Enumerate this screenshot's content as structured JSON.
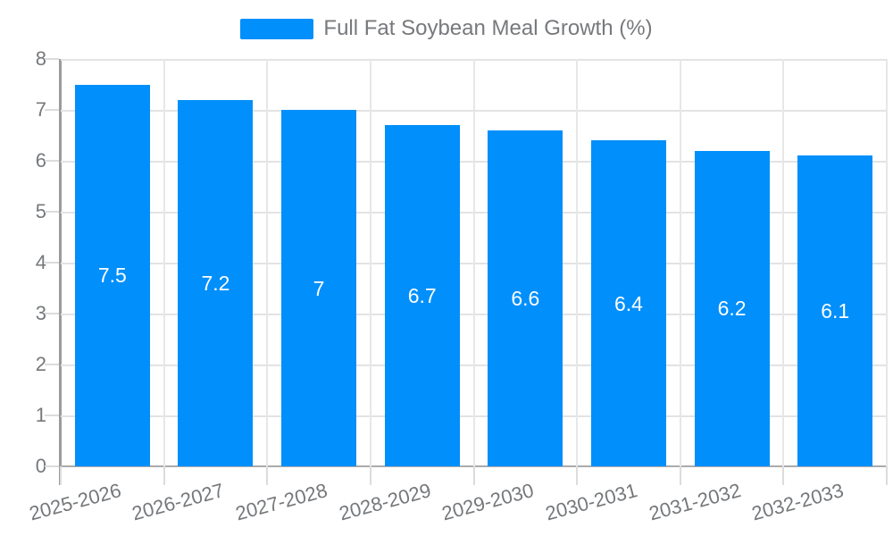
{
  "chart_data": {
    "type": "bar",
    "title": "",
    "xlabel": "",
    "ylabel": "",
    "legend": {
      "label": "Full Fat Soybean Meal Growth (%)",
      "position": "top"
    },
    "categories": [
      "2025-2026",
      "2026-2027",
      "2027-2028",
      "2028-2029",
      "2029-2030",
      "2030-2031",
      "2031-2032",
      "2032-2033"
    ],
    "values": [
      7.5,
      7.2,
      7,
      6.7,
      6.6,
      6.4,
      6.2,
      6.1
    ],
    "value_labels": [
      "7.5",
      "7.2",
      "7",
      "6.7",
      "6.6",
      "6.4",
      "6.2",
      "6.1"
    ],
    "ylim": [
      0,
      8
    ],
    "ytick_labels": [
      "0",
      "1",
      "2",
      "3",
      "4",
      "5",
      "6",
      "7",
      "8"
    ],
    "grid": true,
    "colors": {
      "bar": "#008FFB",
      "value_label": "#ffffff",
      "axis_label": "#75787b",
      "legend_text": "#77797c",
      "hgrid": "#e3e3e3",
      "vgrid": "#e7e7e7",
      "axis_line": "#9b9b9b",
      "baseline": "#ababab",
      "tick": "#dcdcdc"
    }
  }
}
